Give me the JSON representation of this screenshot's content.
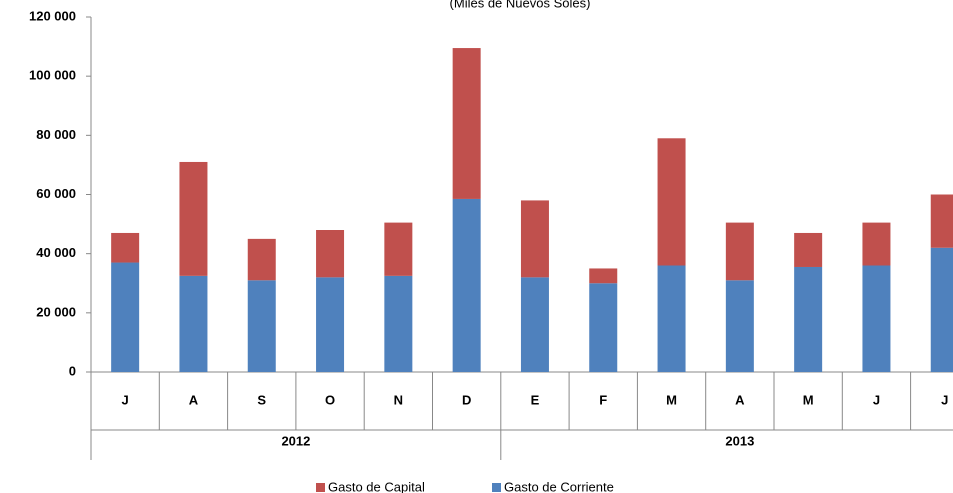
{
  "chart_data": {
    "type": "stacked_bar",
    "subtitle": "(Miles de Nuevos Soles)",
    "groups": [
      {
        "name": "2012",
        "categories": [
          "J",
          "A",
          "S",
          "O",
          "N",
          "D"
        ]
      },
      {
        "name": "2013",
        "categories": [
          "E",
          "F",
          "M",
          "A",
          "M",
          "J",
          "J"
        ]
      }
    ],
    "series": [
      {
        "name": "Gasto de Corriente",
        "color": "#4f81bd",
        "values": [
          37000,
          32500,
          31000,
          32000,
          32500,
          58500,
          32000,
          30000,
          36000,
          31000,
          35500,
          36000,
          42000
        ]
      },
      {
        "name": "Gasto de Capital",
        "color": "#c0504d",
        "values": [
          10000,
          38500,
          14000,
          16000,
          18000,
          51000,
          26000,
          5000,
          43000,
          19500,
          11500,
          14500,
          18000
        ]
      }
    ],
    "ylim": [
      0,
      120000
    ],
    "yticks": [
      0,
      {
        "value": 20000,
        "label": "20 000"
      },
      {
        "value": 40000,
        "label": "40 000"
      },
      {
        "value": 60000,
        "label": "60 000"
      },
      {
        "value": 80000,
        "label": "80 000"
      },
      {
        "value": 100000,
        "label": "100 000"
      },
      {
        "value": 120000,
        "label": "120 000"
      }
    ],
    "grid": false,
    "legend": "bottom"
  }
}
